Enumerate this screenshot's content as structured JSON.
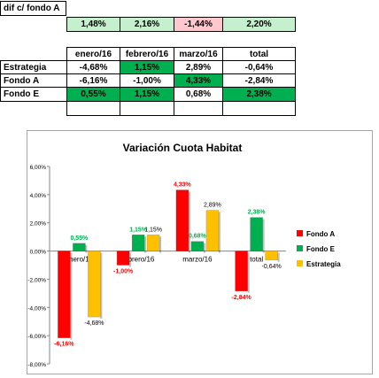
{
  "diff_table": {
    "label": "dif c/ fondo A",
    "values": [
      "1,48%",
      "2,16%",
      "-1,44%",
      "2,20%"
    ]
  },
  "returns_table": {
    "headers": [
      "enero/16",
      "febrero/16",
      "marzo/16",
      "total"
    ],
    "rows": [
      {
        "label": "Estrategia",
        "cells": [
          "-4,68%",
          "1,15%",
          "2,89%",
          "-0,64%"
        ]
      },
      {
        "label": "Fondo A",
        "cells": [
          "-6,16%",
          "-1,00%",
          "4,33%",
          "-2,84%"
        ]
      },
      {
        "label": "Fondo E",
        "cells": [
          "0,55%",
          "1,15%",
          "0,68%",
          "2,38%"
        ]
      }
    ]
  },
  "colors": {
    "positive_fill": "#c6efce",
    "negative_fill": "#ffc7ce",
    "highlight_fill": "#00b050",
    "fondo_a": "#ff0000",
    "fondo_e": "#00b050",
    "estrategia": "#ffc000"
  },
  "chart_data": {
    "type": "bar",
    "title": "Variación Cuota Habitat",
    "categories": [
      "enero/16",
      "febrero/16",
      "marzo/16",
      "total"
    ],
    "series": [
      {
        "name": "Fondo A",
        "color": "#ff0000",
        "values": [
          -6.16,
          -1.0,
          4.33,
          -2.84
        ]
      },
      {
        "name": "Fondo E",
        "color": "#00b050",
        "values": [
          0.55,
          1.15,
          0.68,
          2.38
        ]
      },
      {
        "name": "Estrategia",
        "color": "#ffc000",
        "values": [
          -4.68,
          1.15,
          2.89,
          -0.64
        ]
      }
    ],
    "ylim": [
      -8,
      6
    ],
    "yticks": [
      "6,00%",
      "4,00%",
      "2,00%",
      "0,00%",
      "-2,00%",
      "-4,00%",
      "-6,00%",
      "-8,00%"
    ],
    "data_labels": [
      [
        "-6,16%",
        "-1,00%",
        "4,33%",
        "-2,84%"
      ],
      [
        "0,55%",
        "1,15%",
        "0,68%",
        "2,38%"
      ],
      [
        "-4,68%",
        "1,15%",
        "2,89%",
        "-0,64%"
      ]
    ],
    "legend_position": "right",
    "grid": false
  }
}
